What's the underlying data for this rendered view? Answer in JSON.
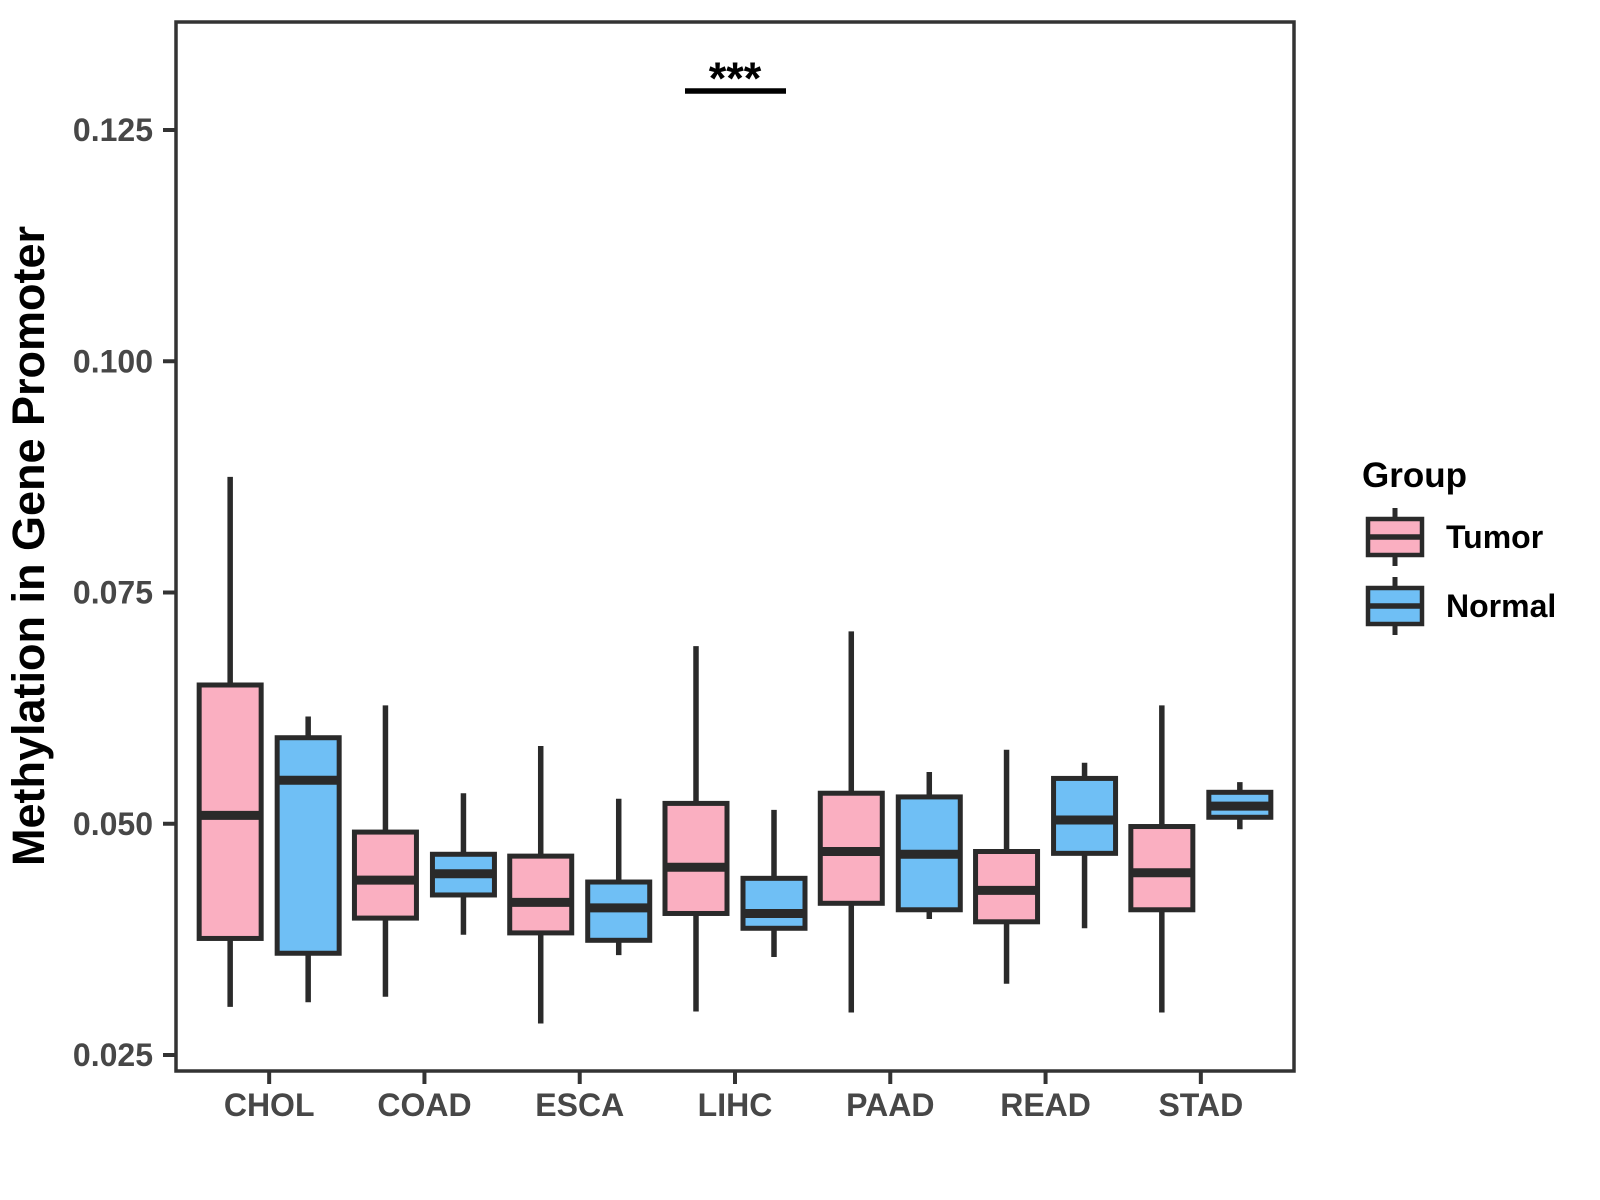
{
  "chart_data": {
    "type": "boxplot",
    "title": "",
    "xlabel": "",
    "ylabel": "Methylation in Gene Promoter",
    "categories": [
      "CHOL",
      "COAD",
      "ESCA",
      "LIHC",
      "PAAD",
      "READ",
      "STAD"
    ],
    "y_axis": {
      "ticks": [
        0.125,
        0.1,
        0.075,
        0.05,
        0.025
      ],
      "tick_labels": [
        "0.125",
        "0.100",
        "0.075",
        "0.050",
        "0.025"
      ],
      "ylim": [
        0.022,
        0.137
      ],
      "grid": false
    },
    "legend_position": "right",
    "series": [
      {
        "name": "Tumor",
        "color": "#FAAFC1",
        "values": [
          {
            "category": "CHOL",
            "min": 0.0302,
            "q1": 0.0376,
            "median": 0.0509,
            "q3": 0.065,
            "max": 0.0875
          },
          {
            "category": "COAD",
            "min": 0.0313,
            "q1": 0.0398,
            "median": 0.0439,
            "q3": 0.0491,
            "max": 0.0628
          },
          {
            "category": "ESCA",
            "min": 0.0284,
            "q1": 0.0382,
            "median": 0.0415,
            "q3": 0.0465,
            "max": 0.0584
          },
          {
            "category": "LIHC",
            "min": 0.0297,
            "q1": 0.0403,
            "median": 0.0453,
            "q3": 0.0522,
            "max": 0.0692
          },
          {
            "category": "PAAD",
            "min": 0.0296,
            "q1": 0.0414,
            "median": 0.047,
            "q3": 0.0533,
            "max": 0.0708
          },
          {
            "category": "READ",
            "min": 0.0327,
            "q1": 0.0394,
            "median": 0.0428,
            "q3": 0.047,
            "max": 0.058
          },
          {
            "category": "STAD",
            "min": 0.0296,
            "q1": 0.0407,
            "median": 0.0447,
            "q3": 0.0497,
            "max": 0.0628
          }
        ]
      },
      {
        "name": "Normal",
        "color": "#6FBFF5",
        "values": [
          {
            "category": "CHOL",
            "min": 0.0307,
            "q1": 0.036,
            "median": 0.0547,
            "q3": 0.0593,
            "max": 0.0616
          },
          {
            "category": "COAD",
            "min": 0.038,
            "q1": 0.0423,
            "median": 0.0446,
            "q3": 0.0467,
            "max": 0.0533
          },
          {
            "category": "ESCA",
            "min": 0.0358,
            "q1": 0.0374,
            "median": 0.0409,
            "q3": 0.0437,
            "max": 0.0527
          },
          {
            "category": "LIHC",
            "min": 0.0356,
            "q1": 0.0387,
            "median": 0.0403,
            "q3": 0.0441,
            "max": 0.0515
          },
          {
            "category": "PAAD",
            "min": 0.0397,
            "q1": 0.0407,
            "median": 0.0467,
            "q3": 0.0529,
            "max": 0.0556
          },
          {
            "category": "READ",
            "min": 0.0387,
            "q1": 0.0468,
            "median": 0.0504,
            "q3": 0.0549,
            "max": 0.0566
          },
          {
            "category": "STAD",
            "min": 0.0494,
            "q1": 0.0507,
            "median": 0.0519,
            "q3": 0.0534,
            "max": 0.0545
          }
        ]
      }
    ],
    "annotation": {
      "label": "***",
      "category": "LIHC"
    }
  },
  "legend": {
    "title": "Group",
    "items": [
      {
        "label": "Tumor",
        "color": "#FAAFC1"
      },
      {
        "label": "Normal",
        "color": "#6FBFF5"
      }
    ]
  },
  "style_colors": {
    "box_stroke": "#2A2A2A",
    "panel_border": "#333333",
    "axis_text": "#474747",
    "background": "#FFFFFF"
  }
}
